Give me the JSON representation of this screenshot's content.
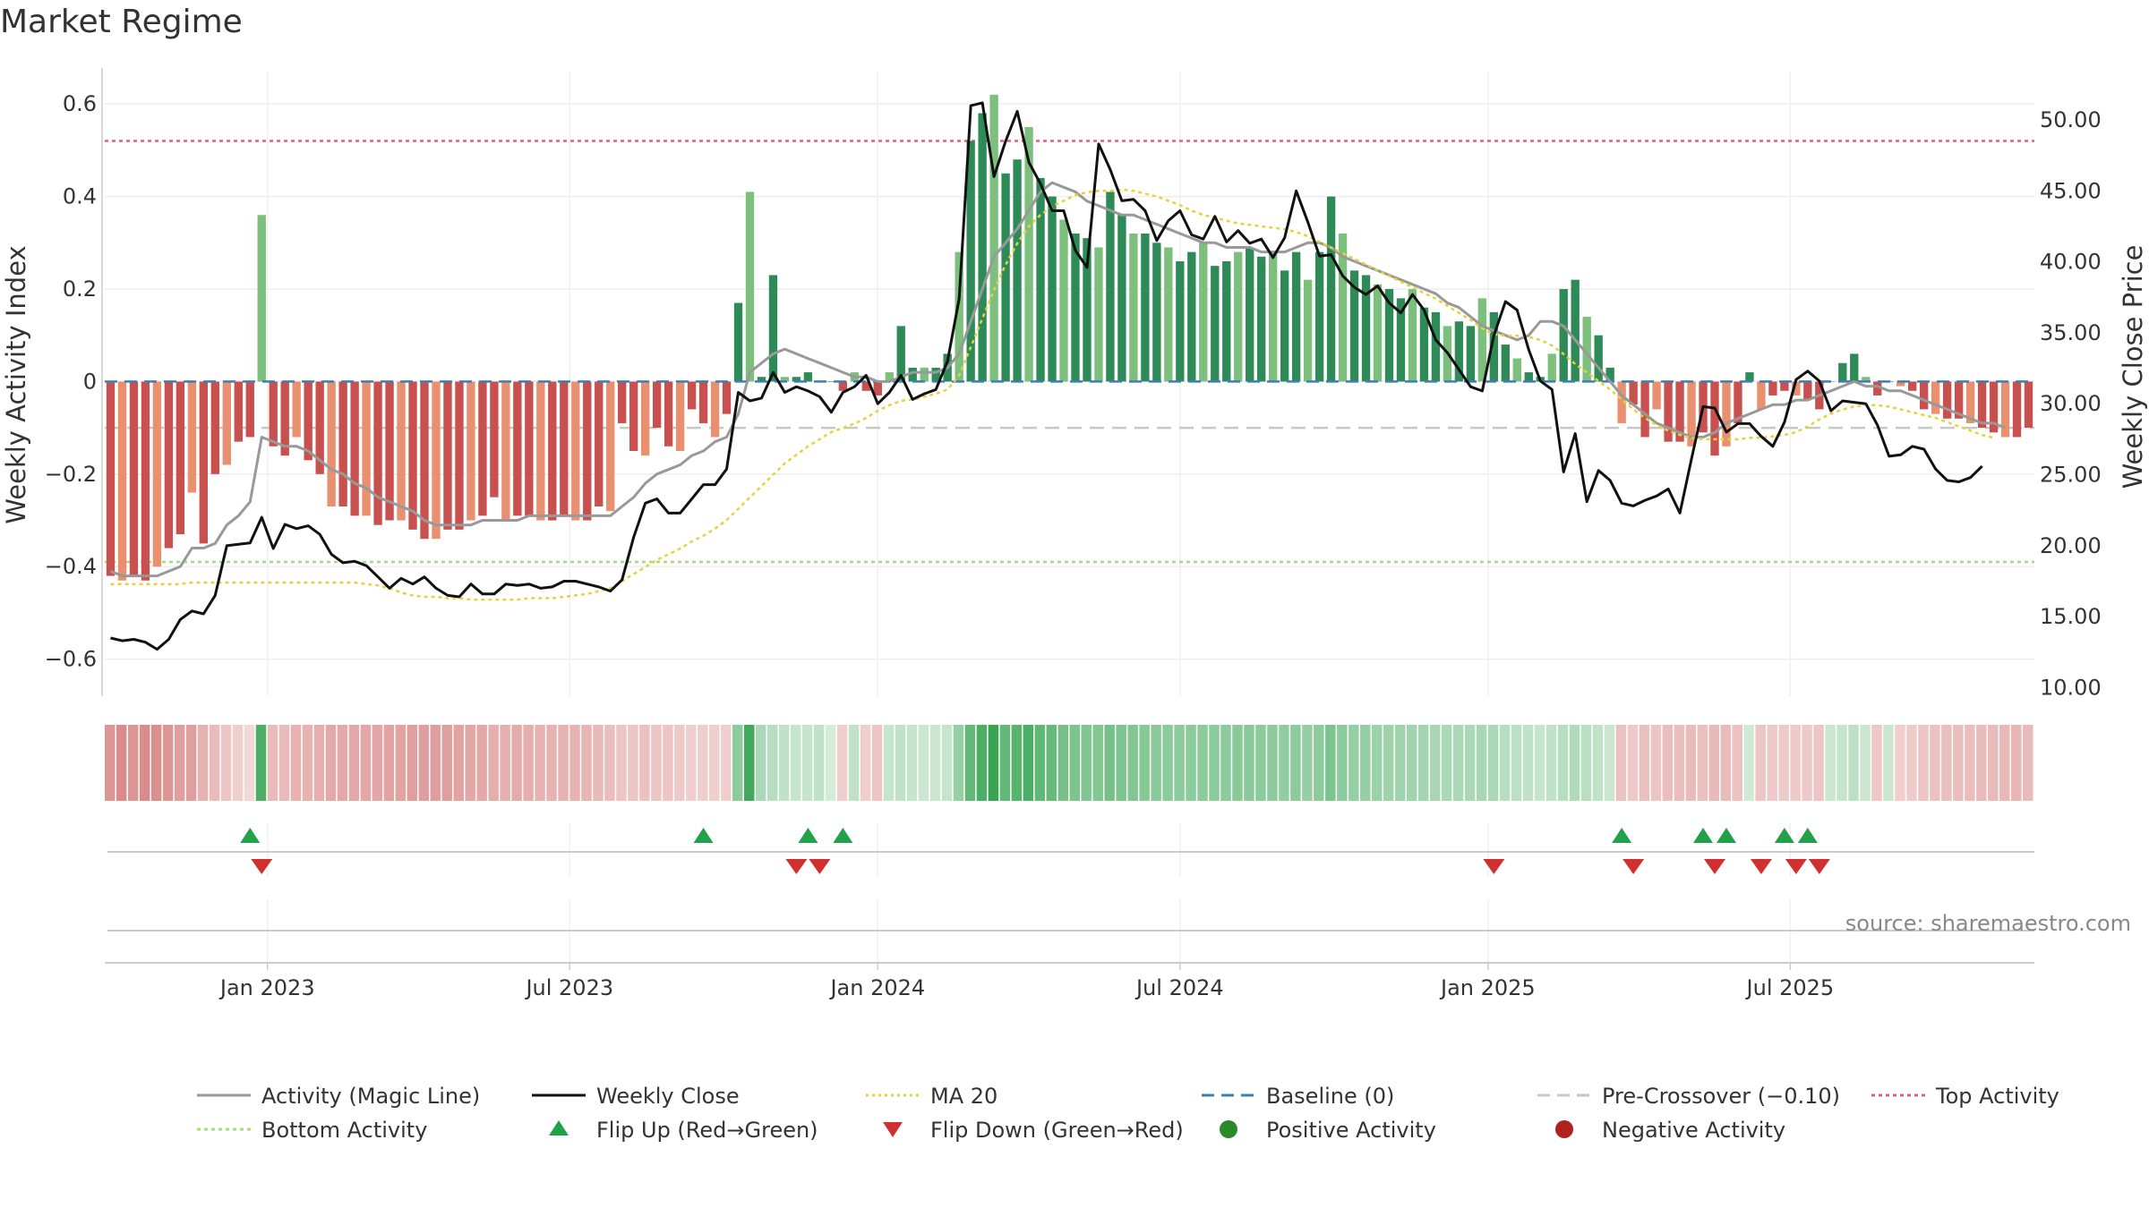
{
  "title": "Market Regime",
  "source_text": "source: sharemaestro.com",
  "colors": {
    "green_dark": "#2e8b57",
    "green_light": "#7dbf7d",
    "red_dark": "#c8504f",
    "red_light": "#e89070",
    "close": "#111111",
    "magic": "#999999",
    "ma20": "#e6d23a",
    "baseline": "#3b7fb6",
    "precross": "#c8c8c8",
    "top": "#e0607a",
    "bottom": "#a6dc7a",
    "flip_up": "#22a04a",
    "flip_down": "#d03030"
  },
  "chart_data": {
    "type": "bar",
    "ylabel": "Weekly Activity Index",
    "y2label": "Weekly Close Price",
    "ylim": [
      -0.68,
      0.67
    ],
    "y2lim": [
      9.4,
      53.4
    ],
    "y_ticks": [
      "0.6",
      "0.4",
      "0.2",
      "0",
      "−0.2",
      "−0.4",
      "−0.6"
    ],
    "y_tick_values": [
      0.6,
      0.4,
      0.2,
      0,
      -0.2,
      -0.4,
      -0.6
    ],
    "y2_ticks": [
      "50.00",
      "45.00",
      "40.00",
      "35.00",
      "30.00",
      "25.00",
      "20.00",
      "15.00",
      "10.00"
    ],
    "y2_tick_values": [
      50,
      45,
      40,
      35,
      30,
      25,
      20,
      15,
      10
    ],
    "x_ticks": [
      "Jan 2023",
      "Jul 2023",
      "Jan 2024",
      "Jul 2024",
      "Jan 2025",
      "Jul 2025"
    ],
    "x_tick_weeks": [
      14,
      40,
      66.5,
      92.5,
      119,
      145
    ],
    "start_date": "2022-10-03",
    "end_date": "2025-09-15",
    "top_activity": 0.52,
    "bottom_activity": -0.39,
    "pre_crossover": -0.1,
    "baseline": 0,
    "activity": [
      -0.42,
      -0.43,
      -0.42,
      -0.43,
      -0.4,
      -0.36,
      -0.33,
      -0.24,
      -0.35,
      -0.2,
      -0.18,
      -0.13,
      -0.12,
      0.36,
      -0.14,
      -0.16,
      -0.12,
      -0.17,
      -0.2,
      -0.27,
      -0.27,
      -0.29,
      -0.29,
      -0.31,
      -0.3,
      -0.3,
      -0.32,
      -0.34,
      -0.34,
      -0.32,
      -0.32,
      -0.3,
      -0.29,
      -0.25,
      -0.3,
      -0.29,
      -0.29,
      -0.3,
      -0.3,
      -0.29,
      -0.3,
      -0.3,
      -0.27,
      -0.28,
      -0.09,
      -0.15,
      -0.16,
      -0.1,
      -0.14,
      -0.15,
      -0.06,
      -0.09,
      -0.12,
      -0.07,
      0.17,
      0.41,
      0.01,
      0.23,
      0.01,
      0.01,
      0.02,
      0.0,
      0.0,
      -0.02,
      0.02,
      -0.02,
      -0.03,
      0.02,
      0.12,
      0.03,
      0.03,
      0.03,
      0.06,
      0.28,
      0.52,
      0.58,
      0.62,
      0.45,
      0.48,
      0.55,
      0.44,
      0.4,
      0.35,
      0.32,
      0.31,
      0.29,
      0.41,
      0.36,
      0.32,
      0.32,
      0.3,
      0.29,
      0.26,
      0.28,
      0.3,
      0.25,
      0.26,
      0.28,
      0.29,
      0.27,
      0.28,
      0.24,
      0.28,
      0.22,
      0.28,
      0.4,
      0.32,
      0.24,
      0.23,
      0.21,
      0.2,
      0.18,
      0.2,
      0.16,
      0.15,
      0.12,
      0.13,
      0.12,
      0.18,
      0.15,
      0.08,
      0.05,
      0.02,
      0.01,
      0.06,
      0.2,
      0.22,
      0.14,
      0.1,
      0.03,
      -0.09,
      -0.05,
      -0.12,
      -0.06,
      -0.13,
      -0.13,
      -0.14,
      -0.11,
      -0.16,
      -0.14,
      -0.09,
      0.02,
      -0.06,
      -0.03,
      -0.02,
      -0.03,
      -0.04,
      -0.06,
      0.0,
      0.04,
      0.06,
      0.01,
      -0.03,
      0.0,
      -0.01,
      -0.02,
      -0.06,
      -0.07,
      -0.08,
      -0.08,
      -0.09,
      -0.1,
      -0.11,
      -0.12,
      -0.12,
      -0.1
    ],
    "close": [
      13.5,
      13.3,
      13.4,
      13.2,
      12.7,
      13.4,
      14.8,
      15.4,
      15.2,
      16.5,
      20.0,
      20.1,
      20.2,
      22.0,
      19.8,
      21.5,
      21.2,
      21.4,
      20.8,
      19.4,
      18.8,
      18.9,
      18.6,
      17.8,
      17.0,
      17.7,
      17.3,
      17.8,
      17.0,
      16.5,
      16.4,
      17.3,
      16.6,
      16.6,
      17.3,
      17.2,
      17.3,
      17.0,
      17.1,
      17.5,
      17.5,
      17.3,
      17.1,
      16.8,
      17.6,
      20.6,
      23.0,
      23.3,
      22.3,
      22.3,
      23.3,
      24.3,
      24.3,
      25.4,
      30.8,
      30.2,
      30.4,
      32.2,
      30.8,
      31.2,
      30.9,
      30.5,
      29.4,
      30.8,
      31.2,
      32.0,
      30.0,
      30.8,
      32.0,
      30.3,
      30.7,
      31.0,
      33.0,
      37.4,
      51.0,
      51.2,
      46.0,
      48.5,
      50.6,
      47.0,
      45.5,
      43.6,
      43.6,
      40.8,
      39.6,
      48.3,
      46.5,
      44.3,
      44.4,
      43.6,
      41.5,
      42.9,
      43.6,
      41.9,
      41.6,
      43.2,
      41.4,
      42.2,
      41.3,
      41.6,
      40.3,
      41.7,
      45.0,
      42.8,
      40.4,
      40.5,
      39.0,
      38.2,
      37.7,
      38.3,
      37.1,
      36.4,
      37.7,
      36.6,
      34.5,
      33.6,
      32.4,
      31.2,
      30.9,
      34.8,
      37.2,
      36.6,
      33.8,
      31.6,
      31.0,
      25.2,
      27.9,
      23.1,
      25.3,
      24.6,
      23.0,
      22.8,
      23.2,
      23.5,
      24.0,
      22.3,
      26.1,
      29.8,
      29.7,
      28.0,
      28.6,
      28.6,
      27.7,
      27.0,
      28.7,
      31.7,
      32.3,
      31.6,
      29.5,
      30.2,
      30.1,
      30.0,
      28.5,
      26.3,
      26.4,
      27.0,
      26.8,
      25.4,
      24.6,
      24.5,
      24.8,
      25.6
    ],
    "magic_line": [
      -0.41,
      -0.42,
      -0.42,
      -0.42,
      -0.42,
      -0.41,
      -0.4,
      -0.36,
      -0.36,
      -0.35,
      -0.31,
      -0.29,
      -0.26,
      -0.12,
      -0.13,
      -0.14,
      -0.14,
      -0.15,
      -0.17,
      -0.19,
      -0.2,
      -0.22,
      -0.23,
      -0.25,
      -0.26,
      -0.27,
      -0.28,
      -0.3,
      -0.31,
      -0.31,
      -0.31,
      -0.31,
      -0.3,
      -0.3,
      -0.3,
      -0.3,
      -0.29,
      -0.29,
      -0.29,
      -0.29,
      -0.29,
      -0.29,
      -0.29,
      -0.29,
      -0.27,
      -0.25,
      -0.22,
      -0.2,
      -0.19,
      -0.18,
      -0.16,
      -0.15,
      -0.13,
      -0.12,
      -0.07,
      0.02,
      0.04,
      0.06,
      0.07,
      0.06,
      0.05,
      0.04,
      0.03,
      0.02,
      0.01,
      0.01,
      0.0,
      0.0,
      0.01,
      0.02,
      0.02,
      0.02,
      0.03,
      0.06,
      0.13,
      0.2,
      0.27,
      0.3,
      0.33,
      0.37,
      0.41,
      0.43,
      0.42,
      0.41,
      0.39,
      0.38,
      0.37,
      0.36,
      0.36,
      0.35,
      0.34,
      0.33,
      0.32,
      0.31,
      0.3,
      0.3,
      0.29,
      0.29,
      0.29,
      0.28,
      0.28,
      0.28,
      0.29,
      0.3,
      0.3,
      0.29,
      0.27,
      0.26,
      0.25,
      0.24,
      0.23,
      0.22,
      0.21,
      0.2,
      0.19,
      0.17,
      0.16,
      0.14,
      0.12,
      0.11,
      0.1,
      0.09,
      0.1,
      0.13,
      0.13,
      0.12,
      0.09,
      0.06,
      0.03,
      0.0,
      -0.03,
      -0.05,
      -0.07,
      -0.09,
      -0.1,
      -0.11,
      -0.12,
      -0.12,
      -0.11,
      -0.09,
      -0.08,
      -0.07,
      -0.06,
      -0.05,
      -0.05,
      -0.04,
      -0.04,
      -0.03,
      -0.02,
      -0.01,
      0.0,
      -0.01,
      -0.01,
      -0.02,
      -0.02,
      -0.03,
      -0.04,
      -0.05,
      -0.06,
      -0.07,
      -0.08,
      -0.09,
      -0.09,
      -0.1
    ],
    "ma20": [
      17.3,
      17.3,
      17.3,
      17.3,
      17.3,
      17.3,
      17.3,
      17.4,
      17.4,
      17.4,
      17.4,
      17.4,
      17.4,
      17.4,
      17.4,
      17.4,
      17.4,
      17.4,
      17.4,
      17.4,
      17.4,
      17.4,
      17.3,
      17.2,
      17.0,
      16.7,
      16.5,
      16.4,
      16.4,
      16.3,
      16.3,
      16.2,
      16.2,
      16.2,
      16.2,
      16.2,
      16.3,
      16.3,
      16.3,
      16.4,
      16.5,
      16.6,
      16.8,
      17.0,
      17.5,
      18.0,
      18.5,
      19.0,
      19.4,
      19.8,
      20.3,
      20.7,
      21.2,
      21.8,
      22.6,
      23.4,
      24.2,
      25.0,
      25.8,
      26.4,
      27.0,
      27.5,
      28.0,
      28.3,
      28.6,
      29.0,
      29.5,
      29.9,
      30.2,
      30.3,
      30.5,
      30.7,
      31.0,
      32.0,
      34.0,
      36.0,
      38.0,
      39.8,
      41.3,
      42.5,
      43.3,
      43.9,
      44.3,
      44.7,
      44.9,
      45.0,
      45.0,
      45.1,
      45.0,
      44.8,
      44.6,
      44.3,
      44.0,
      43.6,
      43.3,
      43.1,
      42.9,
      42.7,
      42.6,
      42.5,
      42.4,
      42.3,
      42.1,
      41.8,
      41.4,
      41.0,
      40.6,
      40.2,
      39.8,
      39.4,
      39.0,
      38.6,
      38.2,
      37.8,
      37.4,
      36.9,
      36.4,
      35.9,
      35.3,
      34.9,
      34.8,
      34.8,
      34.7,
      34.5,
      34.1,
      33.5,
      32.8,
      32.2,
      31.6,
      31.0,
      30.3,
      29.6,
      29.0,
      28.5,
      28.1,
      27.8,
      27.6,
      27.5,
      27.5,
      27.5,
      27.5,
      27.6,
      27.6,
      27.7,
      27.8,
      28.0,
      28.4,
      28.9,
      29.3,
      29.6,
      29.8,
      29.9,
      29.9,
      29.8,
      29.6,
      29.4,
      29.2,
      29.0,
      28.7,
      28.4,
      28.1,
      27.8,
      27.6
    ],
    "flip_up_weeks": [
      12,
      51,
      60,
      63,
      130,
      137,
      139,
      144,
      146
    ],
    "flip_down_weeks": [
      13,
      59,
      61,
      119,
      131,
      138,
      142,
      145,
      147
    ],
    "strip_intensity": [
      0.55,
      0.6,
      0.55,
      0.6,
      0.58,
      0.55,
      0.5,
      0.5,
      0.4,
      0.35,
      0.3,
      0.25,
      0.2,
      0.85,
      0.35,
      0.35,
      0.4,
      0.4,
      0.42,
      0.45,
      0.45,
      0.45,
      0.46,
      0.46,
      0.48,
      0.48,
      0.5,
      0.5,
      0.5,
      0.5,
      0.48,
      0.46,
      0.45,
      0.42,
      0.42,
      0.44,
      0.42,
      0.4,
      0.4,
      0.4,
      0.4,
      0.38,
      0.36,
      0.34,
      0.3,
      0.3,
      0.32,
      0.3,
      0.3,
      0.28,
      0.25,
      0.25,
      0.25,
      0.25,
      0.55,
      0.9,
      0.4,
      0.35,
      0.3,
      0.28,
      0.28,
      0.3,
      0.2,
      0.25,
      0.3,
      0.25,
      0.3,
      0.28,
      0.3,
      0.28,
      0.25,
      0.25,
      0.28,
      0.5,
      0.75,
      0.85,
      0.95,
      0.75,
      0.8,
      0.85,
      0.75,
      0.72,
      0.65,
      0.62,
      0.6,
      0.6,
      0.65,
      0.62,
      0.6,
      0.58,
      0.56,
      0.55,
      0.55,
      0.55,
      0.55,
      0.55,
      0.55,
      0.56,
      0.56,
      0.55,
      0.55,
      0.52,
      0.55,
      0.5,
      0.55,
      0.62,
      0.55,
      0.5,
      0.5,
      0.48,
      0.46,
      0.46,
      0.45,
      0.44,
      0.42,
      0.4,
      0.4,
      0.4,
      0.42,
      0.4,
      0.35,
      0.32,
      0.3,
      0.28,
      0.3,
      0.35,
      0.38,
      0.34,
      0.3,
      0.25,
      0.32,
      0.28,
      0.33,
      0.3,
      0.34,
      0.34,
      0.35,
      0.33,
      0.36,
      0.35,
      0.32,
      0.22,
      0.3,
      0.28,
      0.27,
      0.27,
      0.28,
      0.3,
      0.25,
      0.28,
      0.32,
      0.25,
      0.28,
      0.25,
      0.26,
      0.27,
      0.3,
      0.32,
      0.33,
      0.34,
      0.34,
      0.35,
      0.36,
      0.37,
      0.38,
      0.36
    ]
  },
  "legend": [
    {
      "label": "Activity (Magic Line)",
      "kind": "line",
      "color": "#999999",
      "dash": ""
    },
    {
      "label": "Weekly Close",
      "kind": "line",
      "color": "#111111",
      "dash": ""
    },
    {
      "label": "MA 20",
      "kind": "line",
      "color": "#e6d23a",
      "dash": "3,4"
    },
    {
      "label": "Baseline (0)",
      "kind": "line",
      "color": "#3b7fb6",
      "dash": "14,8"
    },
    {
      "label": "Pre-Crossover (−0.10)",
      "kind": "line",
      "color": "#c8c8c8",
      "dash": "14,8"
    },
    {
      "label": "Top Activity",
      "kind": "line",
      "color": "#e0607a",
      "dash": "4,4"
    },
    {
      "label": "Bottom Activity",
      "kind": "line",
      "color": "#a6dc7a",
      "dash": "4,4"
    },
    {
      "label": "Flip Up (Red→Green)",
      "kind": "tri-up",
      "color": "#22a04a"
    },
    {
      "label": "Flip Down (Green→Red)",
      "kind": "tri-down",
      "color": "#d03030"
    },
    {
      "label": "Positive Activity",
      "kind": "dot",
      "color": "#2a8a2a"
    },
    {
      "label": "Negative Activity",
      "kind": "dot",
      "color": "#b02020"
    }
  ]
}
